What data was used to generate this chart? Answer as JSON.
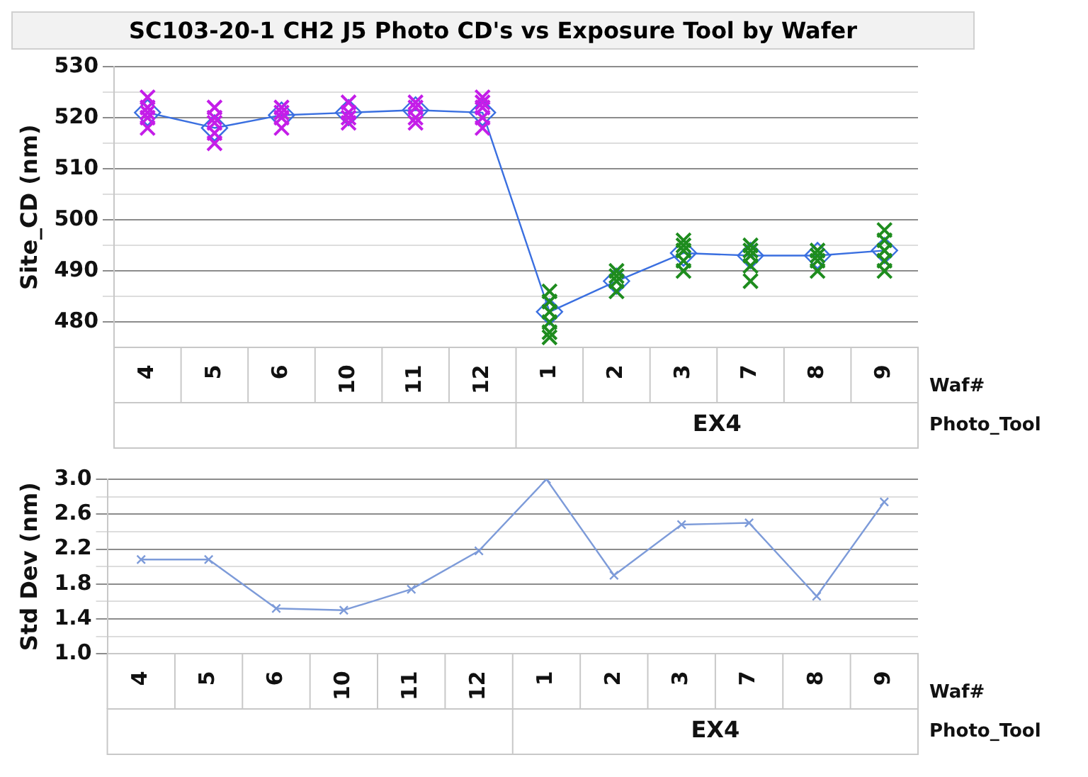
{
  "chart_data": [
    {
      "type": "scatter",
      "title": "SC103-20-1 CH2 J5 Photo CD's vs Exposure Tool by Wafer",
      "ylabel": "Site_CD (nm)",
      "annotations": [
        "Waf#",
        "Photo_Tool",
        "EX4"
      ],
      "categories": [
        "4",
        "5",
        "6",
        "10",
        "11",
        "12",
        "1",
        "2",
        "3",
        "7",
        "8",
        "9"
      ],
      "ylim": [
        475,
        530
      ],
      "yticks": [
        480,
        {
          "value": 485,
          "label": null
        },
        490,
        {
          "value": 495,
          "label": null
        },
        500,
        {
          "value": 505,
          "label": null
        },
        510,
        {
          "value": 515,
          "label": null
        },
        520,
        {
          "value": 525,
          "label": null
        },
        530
      ],
      "grid": "y",
      "legend": false,
      "series": [
        {
          "type": "scatter",
          "marker": "cross",
          "color": "#c41ee8",
          "x": [
            "4",
            "4",
            "4",
            "4",
            "4",
            "5",
            "5",
            "5",
            "5",
            "5",
            "6",
            "6",
            "6",
            "6",
            "10",
            "10",
            "10",
            "10",
            "11",
            "11",
            "11",
            "11",
            "12",
            "12",
            "12",
            "12",
            "12"
          ],
          "values": [
            524,
            522,
            520,
            518,
            521,
            522,
            519,
            517,
            515,
            520,
            522,
            520,
            518,
            521,
            523,
            521,
            519,
            520,
            523,
            522,
            520,
            519,
            524,
            522,
            520,
            518,
            523
          ]
        },
        {
          "type": "scatter",
          "marker": "cross",
          "color": "#1e8c1e",
          "x": [
            "1",
            "1",
            "1",
            "1",
            "1",
            "1",
            "2",
            "2",
            "2",
            "2",
            "3",
            "3",
            "3",
            "3",
            "3",
            "7",
            "7",
            "7",
            "7",
            "7",
            "8",
            "8",
            "8",
            "8",
            "9",
            "9",
            "9",
            "9",
            "9"
          ],
          "values": [
            486,
            484,
            482,
            480,
            478,
            477,
            490,
            488,
            486,
            489,
            495,
            494,
            492,
            490,
            496,
            495,
            493,
            491,
            488,
            494,
            494,
            492,
            490,
            493,
            498,
            496,
            494,
            492,
            490
          ]
        },
        {
          "type": "line",
          "marker": "diamond",
          "color": "#3a6fe0",
          "values": [
            521,
            518,
            520.5,
            521,
            521.5,
            521,
            482,
            488,
            493.5,
            493,
            493,
            494
          ]
        }
      ]
    },
    {
      "type": "line",
      "ylabel": "Std Dev (nm)",
      "annotations": [
        "Waf#",
        "Photo_Tool",
        "EX4"
      ],
      "categories": [
        "4",
        "5",
        "6",
        "10",
        "11",
        "12",
        "1",
        "2",
        "3",
        "7",
        "8",
        "9"
      ],
      "ylim": [
        1.0,
        3.0
      ],
      "yticks": [
        {
          "value": 1.0,
          "label": "1.0"
        },
        {
          "value": 1.2,
          "label": null
        },
        {
          "value": 1.4,
          "label": "1.4"
        },
        {
          "value": 1.6,
          "label": null
        },
        {
          "value": 1.8,
          "label": "1.8"
        },
        {
          "value": 2.0,
          "label": null
        },
        {
          "value": 2.2,
          "label": "2.2"
        },
        {
          "value": 2.4,
          "label": null
        },
        {
          "value": 2.6,
          "label": "2.6"
        },
        {
          "value": 2.8,
          "label": null
        },
        {
          "value": 3.0,
          "label": "3.0"
        }
      ],
      "grid": "y",
      "legend": false,
      "marker": "cross",
      "series": [
        {
          "color": "#7d9bd9",
          "values": [
            2.08,
            2.08,
            1.52,
            1.5,
            1.74,
            2.18,
            3.0,
            1.9,
            2.48,
            2.5,
            1.66,
            2.74
          ]
        }
      ]
    }
  ]
}
